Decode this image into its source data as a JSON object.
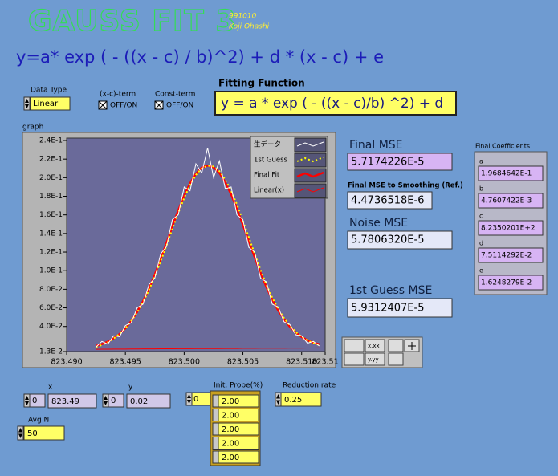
{
  "header": {
    "title": "GAUSS FIT 3",
    "date": "991010",
    "author": "Koji Ohashi",
    "formula": "y=a* exp ( - ((x - c) / b)^2) + d * (x - c) + e"
  },
  "controls": {
    "data_type": {
      "label": "Data Type",
      "value": "Linear"
    },
    "xc_term": {
      "label": "(x-c)-term",
      "value": "OFF/ON"
    },
    "const_term": {
      "label": "Const-term",
      "value": "OFF/ON"
    },
    "fitting_function": {
      "label": "Fitting Function",
      "value": "y = a * exp ( - ((x - c)/b) ^2) + d"
    },
    "x": {
      "label": "x",
      "index": "0",
      "value": "823.49"
    },
    "y": {
      "label": "y",
      "index": "0",
      "value": "0.02"
    },
    "avg_n": {
      "label": "Avg N",
      "value": "50"
    },
    "init_probe": {
      "label": "Init. Probe(%)",
      "index": "0",
      "values": [
        "2.00",
        "2.00",
        "2.00",
        "2.00",
        "2.00"
      ]
    },
    "reduction_rate": {
      "label": "Reduction rate",
      "value": "0.25"
    },
    "palette": [
      "x.xx",
      "y.yy"
    ]
  },
  "results": {
    "final_mse": {
      "label": "Final MSE",
      "value": "5.7174226E-5"
    },
    "final_mse_smoothing": {
      "label": "Final MSE to Smoothing (Ref.)",
      "value": "4.4736518E-6"
    },
    "noise_mse": {
      "label": "Noise MSE",
      "value": "5.7806320E-5"
    },
    "guess_mse": {
      "label": "1st Guess MSE",
      "value": "5.9312407E-5"
    },
    "coefficients": {
      "label": "Final Coefficients",
      "items": [
        {
          "name": "a",
          "value": "1.9684642E-1"
        },
        {
          "name": "b",
          "value": "4.7607422E-3"
        },
        {
          "name": "c",
          "value": "8.2350201E+2"
        },
        {
          "name": "d",
          "value": "7.5114292E-2"
        },
        {
          "name": "e",
          "value": "1.6248279E-2"
        }
      ]
    }
  },
  "chart_data": {
    "type": "line",
    "title": "graph",
    "x": [
      823.4925,
      823.493,
      823.4935,
      823.494,
      823.4945,
      823.495,
      823.4955,
      823.496,
      823.4965,
      823.497,
      823.4975,
      823.498,
      823.4985,
      823.499,
      823.4995,
      823.5,
      823.5005,
      823.501,
      823.5015,
      823.502,
      823.5025,
      823.503,
      823.5035,
      823.504,
      823.5045,
      823.505,
      823.5055,
      823.506,
      823.5065,
      823.507,
      823.5075,
      823.508,
      823.5085,
      823.509,
      823.5095,
      823.51,
      823.5105,
      823.511,
      823.5115
    ],
    "series": [
      {
        "name": "生データ",
        "color": "#ffffff",
        "width": 1,
        "dashed": false,
        "values": [
          0.018,
          0.024,
          0.021,
          0.03,
          0.029,
          0.041,
          0.044,
          0.06,
          0.064,
          0.085,
          0.092,
          0.118,
          0.126,
          0.155,
          0.16,
          0.19,
          0.186,
          0.215,
          0.205,
          0.232,
          0.2,
          0.218,
          0.188,
          0.19,
          0.16,
          0.155,
          0.125,
          0.12,
          0.092,
          0.088,
          0.064,
          0.061,
          0.045,
          0.042,
          0.031,
          0.03,
          0.022,
          0.024,
          0.019
        ]
      },
      {
        "name": "1st Guess",
        "color": "#ffff00",
        "width": 2,
        "dashed": true,
        "values": [
          0.018,
          0.02,
          0.023,
          0.027,
          0.032,
          0.038,
          0.046,
          0.055,
          0.066,
          0.079,
          0.094,
          0.11,
          0.127,
          0.145,
          0.162,
          0.178,
          0.192,
          0.203,
          0.21,
          0.213,
          0.212,
          0.207,
          0.198,
          0.186,
          0.171,
          0.154,
          0.136,
          0.118,
          0.101,
          0.085,
          0.071,
          0.059,
          0.049,
          0.041,
          0.034,
          0.029,
          0.025,
          0.022,
          0.02
        ]
      },
      {
        "name": "Final Fit",
        "color": "#ff0000",
        "width": 2.5,
        "dashed": false,
        "values": [
          0.0191,
          0.021,
          0.0236,
          0.0272,
          0.0319,
          0.0381,
          0.0459,
          0.0556,
          0.0671,
          0.0806,
          0.0958,
          0.1124,
          0.1299,
          0.1477,
          0.1648,
          0.1805,
          0.1939,
          0.2042,
          0.2108,
          0.2131,
          0.2112,
          0.205,
          0.1951,
          0.182,
          0.1665,
          0.1495,
          0.1319,
          0.1145,
          0.0978,
          0.0825,
          0.069,
          0.0573,
          0.0476,
          0.0397,
          0.0335,
          0.0287,
          0.0251,
          0.0225,
          0.0208
        ]
      },
      {
        "name": "Linear(x)",
        "color": "#ff0000",
        "width": 1,
        "dashed": false,
        "values": [
          0.0155,
          0.0156,
          0.0156,
          0.0157,
          0.0157,
          0.0157,
          0.0158,
          0.0158,
          0.0159,
          0.0159,
          0.0159,
          0.016,
          0.016,
          0.016,
          0.0161,
          0.0161,
          0.0161,
          0.0162,
          0.0162,
          0.0162,
          0.0163,
          0.0163,
          0.0164,
          0.0164,
          0.0164,
          0.0165,
          0.0165,
          0.0165,
          0.0166,
          0.0166,
          0.0167,
          0.0167,
          0.0167,
          0.0168,
          0.0168,
          0.0168,
          0.0169,
          0.0169,
          0.017
        ]
      }
    ],
    "xlim": [
      823.49,
      823.512
    ],
    "xticks": [
      {
        "value": 823.49,
        "label": "823.490"
      },
      {
        "value": 823.495,
        "label": "823.495"
      },
      {
        "value": 823.5,
        "label": "823.500"
      },
      {
        "value": 823.505,
        "label": "823.505"
      },
      {
        "value": 823.51,
        "label": "823.510"
      },
      {
        "value": 823.512,
        "label": "823.51"
      }
    ],
    "ylim": [
      0.013,
      0.24
    ],
    "yticks": [
      {
        "value": 0.24,
        "label": "2.4E-1"
      },
      {
        "value": 0.22,
        "label": "2.2E-1"
      },
      {
        "value": 0.2,
        "label": "2.0E-1"
      },
      {
        "value": 0.18,
        "label": "1.8E-1"
      },
      {
        "value": 0.16,
        "label": "1.6E-1"
      },
      {
        "value": 0.14,
        "label": "1.4E-1"
      },
      {
        "value": 0.12,
        "label": "1.2E-1"
      },
      {
        "value": 0.1,
        "label": "1.0E-1"
      },
      {
        "value": 0.08,
        "label": "8.0E-2"
      },
      {
        "value": 0.06,
        "label": "6.0E-2"
      },
      {
        "value": 0.04,
        "label": "4.0E-2"
      },
      {
        "value": 0.013,
        "label": "1.3E-2"
      }
    ],
    "plot_color": "#6a6a9a"
  }
}
